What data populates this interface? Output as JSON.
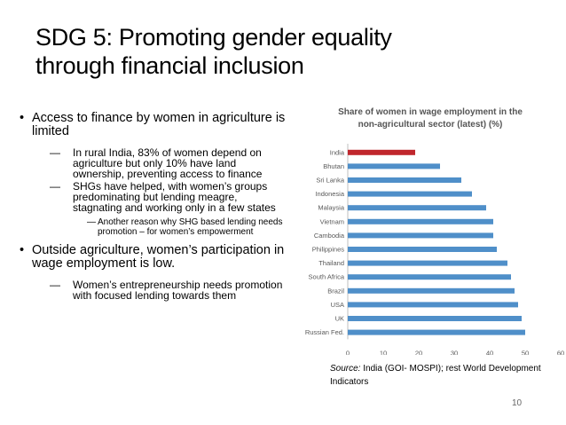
{
  "title": {
    "line1": "SDG 5:  Promoting gender equality",
    "line2": "through financial inclusion"
  },
  "bullets": {
    "b1": "Access to finance by women in agriculture is limited",
    "b1_sub1": "In rural India, 83% of women depend on agriculture but only 10% have land ownership, preventing access to finance",
    "b1_sub2": "SHGs have helped, with women’s groups predominating but lending meagre, stagnating and working only in a few states",
    "b1_sub2_sub": "Another reason why SHG based lending needs promotion – for women’s empowerment",
    "b2": "Outside agriculture, women’s participation in wage employment is low.",
    "b2_sub1": "Women’s entrepreneurship needs promotion with focused lending towards them"
  },
  "chart_data": {
    "type": "bar",
    "orientation": "horizontal",
    "title": "Share of women in wage employment in the non-agricultural sector (latest) (%)",
    "categories": [
      "India",
      "Bhutan",
      "Sri Lanka",
      "Indonesia",
      "Malaysia",
      "Vietnam",
      "Cambodia",
      "Philippines",
      "Thailand",
      "South Africa",
      "Brazil",
      "USA",
      "UK",
      "Russian Fed."
    ],
    "values": [
      19,
      26,
      32,
      35,
      39,
      41,
      41,
      42,
      45,
      46,
      47,
      48,
      49,
      50
    ],
    "xlim": [
      0,
      60
    ],
    "xticks": [
      0,
      10,
      20,
      30,
      40,
      50,
      60
    ],
    "highlight": "India",
    "colors": {
      "bar": "#4f8fc9",
      "highlight": "#c0272d"
    },
    "grid": false
  },
  "source": {
    "label": "Source:",
    "text": "  India (GOI- MOSPI); rest World Development Indicators"
  },
  "page_number": "10"
}
